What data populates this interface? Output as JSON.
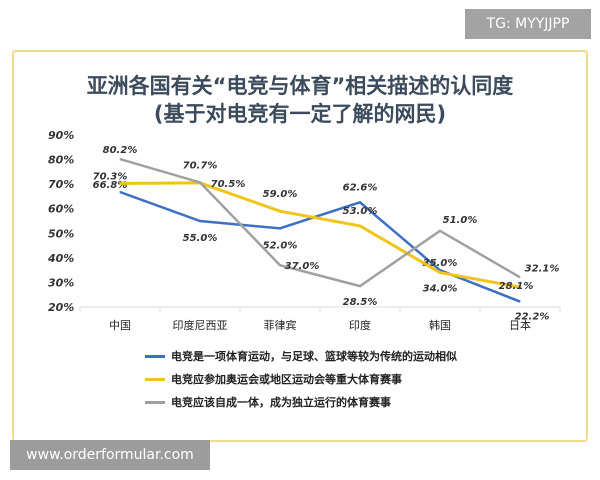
{
  "watermark_top": "TG: MYYJJPP",
  "watermark_bottom": "www.orderformular.com",
  "chart_data": {
    "type": "line",
    "title": "亚洲各国有关“电竞与体育”相关描述的认同度",
    "subtitle": "(基于对电竞有一定了解的网民)",
    "categories": [
      "中国",
      "印度尼西亚",
      "菲律宾",
      "印度",
      "韩国",
      "日本"
    ],
    "yticks": [
      "20%",
      "30%",
      "40%",
      "50%",
      "60%",
      "70%",
      "80%",
      "90%"
    ],
    "ylim": [
      20,
      90
    ],
    "legend_position": "bottom",
    "series": [
      {
        "name": "电竞是一项体育运动，与足球、篮球等较为传统的运动相似",
        "color": "#3d6fc4",
        "values": [
          66.8,
          55.0,
          52.0,
          62.6,
          35.0,
          22.2
        ],
        "labels": [
          "66.8%",
          "55.0%",
          "52.0%",
          "62.6%",
          "35.0%",
          "22.2%"
        ]
      },
      {
        "name": "电竞应参加奥运会或地区运动会等重大体育赛事",
        "color": "#f0c419",
        "values": [
          70.3,
          70.5,
          59.0,
          53.0,
          34.0,
          28.1
        ],
        "labels": [
          "70.3%",
          "70.5%",
          "59.0%",
          "53.0%",
          "34.0%",
          "28.1%"
        ]
      },
      {
        "name": "电竞应该自成一体，成为独立运行的体育赛事",
        "color": "#a0a0a0",
        "values": [
          80.2,
          70.7,
          37.0,
          28.5,
          51.0,
          32.1
        ],
        "labels": [
          "80.2%",
          "70.7%",
          "37.0%",
          "28.5%",
          "51.0%",
          "32.1%"
        ]
      }
    ]
  }
}
